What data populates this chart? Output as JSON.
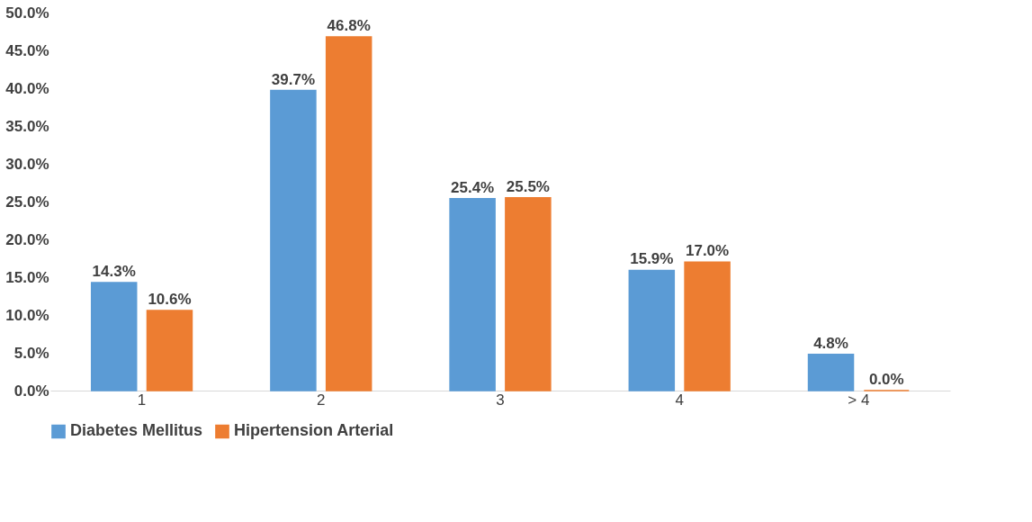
{
  "chart_data": {
    "type": "bar",
    "categories": [
      "1",
      "2",
      "3",
      "4",
      "> 4"
    ],
    "series": [
      {
        "name": "Diabetes Mellitus",
        "color": "#5b9bd5",
        "values": [
          14.3,
          39.7,
          25.4,
          15.9,
          4.8
        ],
        "value_labels": [
          "14.3%",
          "39.7%",
          "25.4%",
          "15.9%",
          "4.8%"
        ]
      },
      {
        "name": "Hipertension Arterial",
        "color": "#ed7d31",
        "values": [
          10.6,
          46.8,
          25.5,
          17.0,
          0.0
        ],
        "value_labels": [
          "10.6%",
          "46.8%",
          "25.5%",
          "17.0%",
          "0.0%"
        ]
      }
    ],
    "ylim": [
      0,
      50
    ],
    "yticks": [
      {
        "value": 0,
        "label": "0.0%"
      },
      {
        "value": 5,
        "label": "5.0%"
      },
      {
        "value": 10,
        "label": "10.0%"
      },
      {
        "value": 15,
        "label": "15.0%"
      },
      {
        "value": 20,
        "label": "20.0%"
      },
      {
        "value": 25,
        "label": "25.0%"
      },
      {
        "value": 30,
        "label": "30.0%"
      },
      {
        "value": 35,
        "label": "35.0%"
      },
      {
        "value": 40,
        "label": "40.0%"
      },
      {
        "value": 45,
        "label": "45.0%"
      },
      {
        "value": 50,
        "label": "50.0%"
      }
    ],
    "grid": false,
    "legend": "bottom"
  }
}
